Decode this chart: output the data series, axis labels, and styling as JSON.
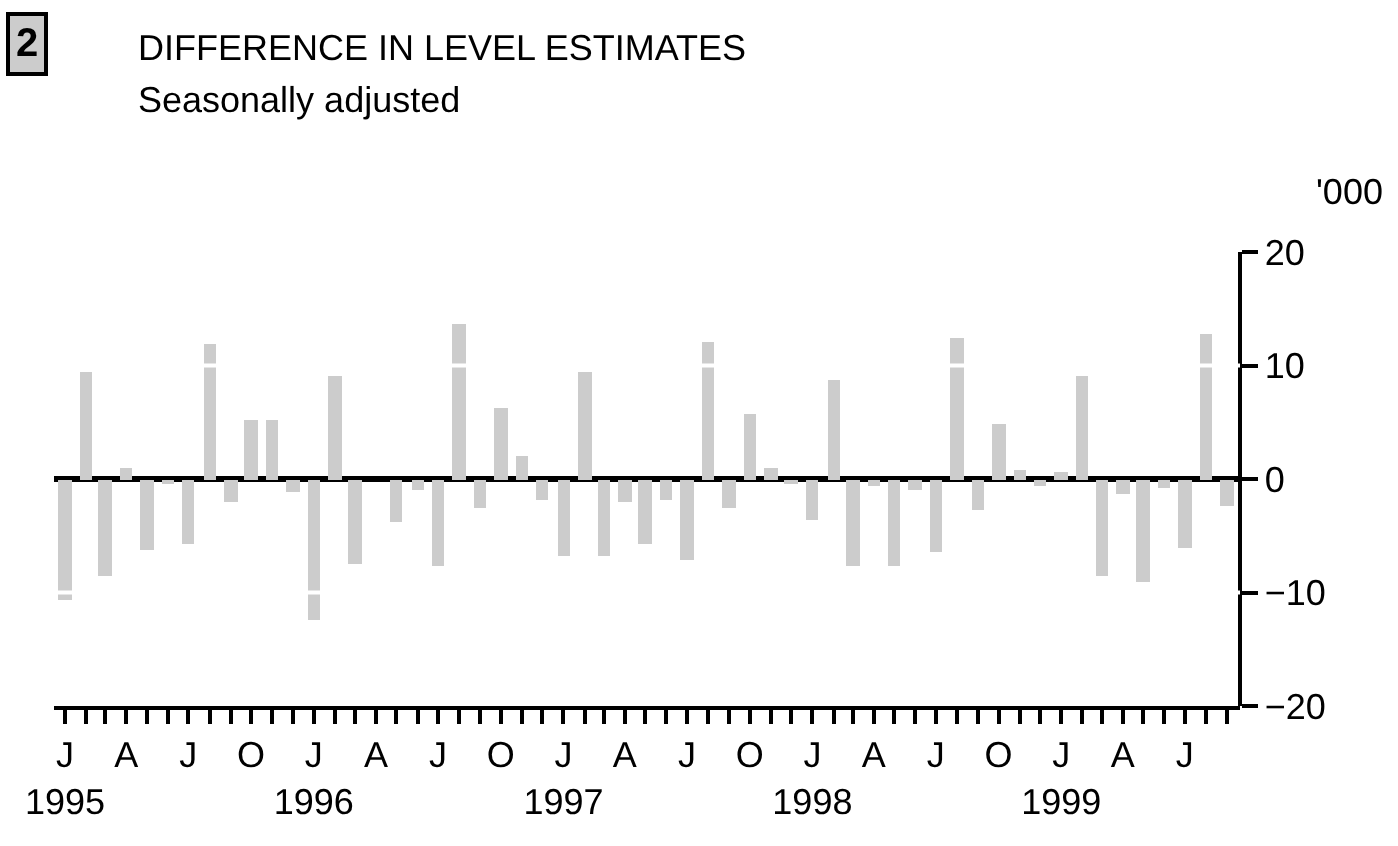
{
  "chart_data": {
    "type": "bar",
    "title": "DIFFERENCE IN LEVEL ESTIMATES",
    "subtitle": "Seasonally adjusted",
    "ylabel": "'000",
    "annotations": [
      "2"
    ],
    "x": [
      "1995-01",
      "1995-02",
      "1995-03",
      "1995-04",
      "1995-05",
      "1995-06",
      "1995-07",
      "1995-08",
      "1995-09",
      "1995-10",
      "1995-11",
      "1995-12",
      "1996-01",
      "1996-02",
      "1996-03",
      "1996-04",
      "1996-05",
      "1996-06",
      "1996-07",
      "1996-08",
      "1996-09",
      "1996-10",
      "1996-11",
      "1996-12",
      "1997-01",
      "1997-02",
      "1997-03",
      "1997-04",
      "1997-05",
      "1997-06",
      "1997-07",
      "1997-08",
      "1997-09",
      "1997-10",
      "1997-11",
      "1997-12",
      "1998-01",
      "1998-02",
      "1998-03",
      "1998-04",
      "1998-05",
      "1998-06",
      "1998-07",
      "1998-08",
      "1998-09",
      "1998-10",
      "1998-11",
      "1998-12",
      "1999-01",
      "1999-02",
      "1999-03",
      "1999-04",
      "1999-05",
      "1999-06",
      "1999-07",
      "1999-08",
      "1999-09"
    ],
    "values": [
      -10.7,
      9.5,
      -8.6,
      0.9,
      -6.2,
      -0.4,
      -5.7,
      11.9,
      -2.1,
      5.2,
      5.2,
      -1.1,
      -12.4,
      9.1,
      -7.4,
      0,
      -3.8,
      -0.9,
      -7.6,
      13.7,
      -2.5,
      6.2,
      2.1,
      -1.8,
      -6.7,
      9.5,
      -6.7,
      -2.1,
      -5.7,
      -1.9,
      -7.1,
      12.0,
      -2.5,
      5.7,
      0.9,
      -0.4,
      -3.6,
      8.8,
      -7.6,
      -0.7,
      -7.7,
      -0.9,
      -6.5,
      12.4,
      -2.8,
      4.9,
      0.8,
      -0.6,
      0.6,
      9.1,
      -8.6,
      -1.3,
      -9.1,
      -0.8,
      -6.0,
      12.7,
      -2.3
    ],
    "color": "#cccccc",
    "xlim": [
      "1994-12-16",
      "1999-09-20"
    ],
    "xticks": [
      {
        "value": "1995-01",
        "label": "J\n1995"
      },
      {
        "value": "1995-02",
        "label": null
      },
      {
        "value": "1995-03",
        "label": null
      },
      {
        "value": "1995-04",
        "label": "A"
      },
      {
        "value": "1995-05",
        "label": null
      },
      {
        "value": "1995-06",
        "label": null
      },
      {
        "value": "1995-07",
        "label": "J"
      },
      {
        "value": "1995-08",
        "label": null
      },
      {
        "value": "1995-09",
        "label": null
      },
      {
        "value": "1995-10",
        "label": "O"
      },
      {
        "value": "1995-11",
        "label": null
      },
      {
        "value": "1995-12",
        "label": null
      },
      {
        "value": "1996-01",
        "label": "J\n1996"
      },
      {
        "value": "1996-02",
        "label": null
      },
      {
        "value": "1996-03",
        "label": null
      },
      {
        "value": "1996-04",
        "label": "A"
      },
      {
        "value": "1996-05",
        "label": null
      },
      {
        "value": "1996-06",
        "label": null
      },
      {
        "value": "1996-07",
        "label": "J"
      },
      {
        "value": "1996-08",
        "label": null
      },
      {
        "value": "1996-09",
        "label": null
      },
      {
        "value": "1996-10",
        "label": "O"
      },
      {
        "value": "1996-11",
        "label": null
      },
      {
        "value": "1996-12",
        "label": null
      },
      {
        "value": "1997-01",
        "label": "J\n1997"
      },
      {
        "value": "1997-02",
        "label": null
      },
      {
        "value": "1997-03",
        "label": null
      },
      {
        "value": "1997-04",
        "label": "A"
      },
      {
        "value": "1997-05",
        "label": null
      },
      {
        "value": "1997-06",
        "label": null
      },
      {
        "value": "1997-07",
        "label": "J"
      },
      {
        "value": "1997-08",
        "label": null
      },
      {
        "value": "1997-09",
        "label": null
      },
      {
        "value": "1997-10",
        "label": "O"
      },
      {
        "value": "1997-11",
        "label": null
      },
      {
        "value": "1997-12",
        "label": null
      },
      {
        "value": "1998-01",
        "label": "J\n1998"
      },
      {
        "value": "1998-02",
        "label": null
      },
      {
        "value": "1998-03",
        "label": null
      },
      {
        "value": "1998-04",
        "label": "A"
      },
      {
        "value": "1998-05",
        "label": null
      },
      {
        "value": "1998-06",
        "label": null
      },
      {
        "value": "1998-07",
        "label": "J"
      },
      {
        "value": "1998-08",
        "label": null
      },
      {
        "value": "1998-09",
        "label": null
      },
      {
        "value": "1998-10",
        "label": "O"
      },
      {
        "value": "1998-11",
        "label": null
      },
      {
        "value": "1998-12",
        "label": null
      },
      {
        "value": "1999-01",
        "label": "J\n1999"
      },
      {
        "value": "1999-02",
        "label": null
      },
      {
        "value": "1999-03",
        "label": null
      },
      {
        "value": "1999-04",
        "label": "A"
      },
      {
        "value": "1999-05",
        "label": null
      },
      {
        "value": "1999-06",
        "label": null
      },
      {
        "value": "1999-07",
        "label": "J"
      },
      {
        "value": "1999-08",
        "label": null
      },
      {
        "value": "1999-09",
        "label": null
      }
    ],
    "ylim": [
      -20,
      20
    ],
    "yticks": [
      -20,
      -10,
      0,
      10,
      20
    ],
    "grid": "y",
    "legend": false
  }
}
